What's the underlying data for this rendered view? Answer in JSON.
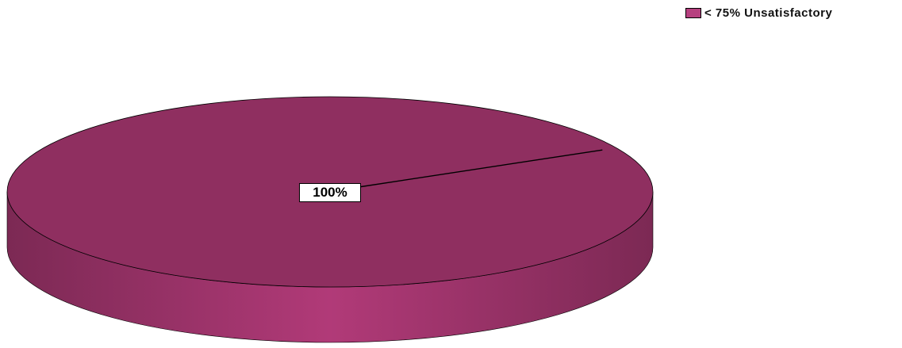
{
  "chart_data": {
    "type": "pie",
    "style": "3d",
    "series": [
      {
        "values": [
          100
        ],
        "labels": [
          "100%"
        ]
      }
    ],
    "categories": [
      "< 75% Unsatisfactory"
    ],
    "data_labels": [
      "100%"
    ],
    "legend": {
      "entries": [
        "< 75% Unsatisfactory"
      ],
      "placement": "top-right"
    },
    "colors": {
      "slice_top": "#8f2f60",
      "slice_side_light": "#b13a78",
      "slice_side_dark": "#7c2954",
      "legend_swatch": "#b6407f",
      "edge": "#000000"
    },
    "title": "",
    "xlabel": "",
    "ylabel": ""
  }
}
